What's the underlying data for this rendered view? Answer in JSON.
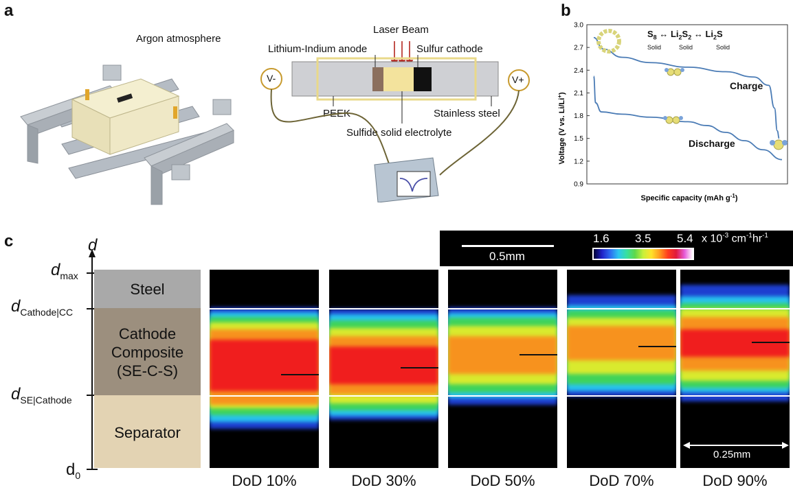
{
  "panels": {
    "a": "a",
    "b": "b",
    "c": "c"
  },
  "panel_a": {
    "argon": "Argon atmosphere",
    "laser": "Laser Beam",
    "anode": "Lithium-Indium anode",
    "cathode": "Sulfur cathode",
    "peek": "PEEK",
    "steel": "Stainless steel",
    "electrolyte": "Sulfide solid electrolyte",
    "vminus": "V-",
    "vplus": "V+"
  },
  "panel_b": {
    "reaction": {
      "s8": "S8",
      "li2s2": "Li2S2",
      "li2s": "Li2S",
      "arrow": "↔",
      "phase": "Solid"
    },
    "charge": "Charge",
    "discharge": "Discharge"
  },
  "chart_data": {
    "type": "line",
    "title": "",
    "xlabel": "Specific capacity (mAh g-1)",
    "ylabel": "Voltage (V vs. Li/Li+)",
    "ylim": [
      0.9,
      3.0
    ],
    "yticks": [
      "3.0",
      "2.7",
      "2.4",
      "2.1",
      "1.8",
      "1.5",
      "1.2",
      "0.9"
    ],
    "grid": false,
    "series": [
      {
        "name": "Charge",
        "x": [
          0.0,
          0.05,
          0.15,
          0.3,
          0.5,
          0.7,
          0.85,
          0.93,
          0.96,
          0.975,
          0.985
        ],
        "values": [
          2.83,
          2.68,
          2.57,
          2.5,
          2.44,
          2.38,
          2.31,
          2.2,
          1.9,
          1.6,
          1.5
        ]
      },
      {
        "name": "Discharge",
        "x": [
          0.0,
          0.01,
          0.04,
          0.15,
          0.3,
          0.5,
          0.6,
          0.7,
          0.8,
          0.9,
          1.0
        ],
        "values": [
          2.32,
          1.97,
          1.85,
          1.82,
          1.78,
          1.72,
          1.67,
          1.58,
          1.47,
          1.35,
          1.22
        ]
      }
    ]
  },
  "panel_c": {
    "axis": "d",
    "dmax": "d",
    "dmax_sub": "max",
    "dcc": "d",
    "dcc_sub": "Cathode|CC",
    "dse": "d",
    "dse_sub": "SE|Cathode",
    "d0": "d",
    "d0_sub": "0",
    "layers": {
      "steel": "Steel",
      "cathode": "Cathode\nComposite\n(SE-C-S)",
      "separator": "Separator"
    },
    "scale_bar": "0.5mm",
    "scale_bar_2": "0.25mm",
    "colorbar": {
      "min": "1.6",
      "mid": "3.5",
      "max": "5.4",
      "unit": "x 10-3 cm-1hr-1"
    },
    "maps": [
      {
        "label": "DoD 10%"
      },
      {
        "label": "DoD 30%"
      },
      {
        "label": "DoD 50%"
      },
      {
        "label": "DoD 70%"
      },
      {
        "label": "DoD 90%"
      }
    ]
  }
}
